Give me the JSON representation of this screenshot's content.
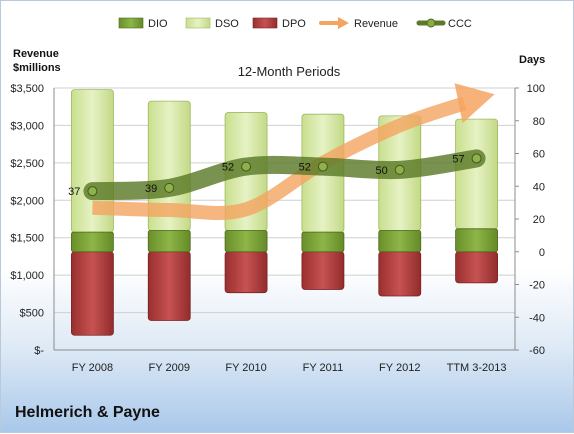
{
  "company": "Helmerich & Payne",
  "chart_data": {
    "type": "bar",
    "title": "12-Month Periods",
    "categories": [
      "FY 2008",
      "FY 2009",
      "FY 2010",
      "FY 2011",
      "FY 2012",
      "TTM 3-2013"
    ],
    "left_axis": {
      "label_line1": "Revenue",
      "label_line2": "$millions",
      "range": [
        0,
        3500
      ],
      "ticks": [
        0,
        500,
        1000,
        1500,
        2000,
        2500,
        3000,
        3500
      ],
      "tick_labels": [
        "$-",
        "$500",
        "$1,000",
        "$1,500",
        "$2,000",
        "$2,500",
        "$3,000",
        "$3,500"
      ]
    },
    "right_axis": {
      "label": "Days",
      "range": [
        -60,
        100
      ],
      "ticks": [
        -60,
        -40,
        -20,
        0,
        20,
        40,
        60,
        80,
        100
      ],
      "tick_labels": [
        "-60",
        "-40",
        "-20",
        "0",
        "20",
        "40",
        "60",
        "80",
        "100"
      ]
    },
    "legend": {
      "position": "top"
    },
    "grid": true,
    "series": [
      {
        "name": "DIO",
        "axis": "right",
        "type": "stacked-bar",
        "color": "#7fa33a",
        "values": [
          12,
          13,
          13,
          12,
          13,
          14
        ]
      },
      {
        "name": "DSO",
        "axis": "right",
        "type": "stacked-bar",
        "color": "#d8eaa8",
        "values": [
          87,
          79,
          72,
          72,
          70,
          67
        ]
      },
      {
        "name": "DPO",
        "axis": "right",
        "type": "negative-bar",
        "color": "#b03a3a",
        "values": [
          -51,
          -42,
          -25,
          -23,
          -27,
          -19
        ]
      },
      {
        "name": "Revenue",
        "axis": "left",
        "type": "arrow-line",
        "color": "#f4a460",
        "values": [
          1900,
          1870,
          1880,
          2500,
          3000,
          3350
        ]
      },
      {
        "name": "CCC",
        "axis": "right",
        "type": "line",
        "color": "#5c7a28",
        "values": [
          37,
          39,
          52,
          52,
          50,
          57
        ],
        "labels": [
          "37",
          "39",
          "52",
          "52",
          "50",
          "57"
        ]
      }
    ]
  }
}
